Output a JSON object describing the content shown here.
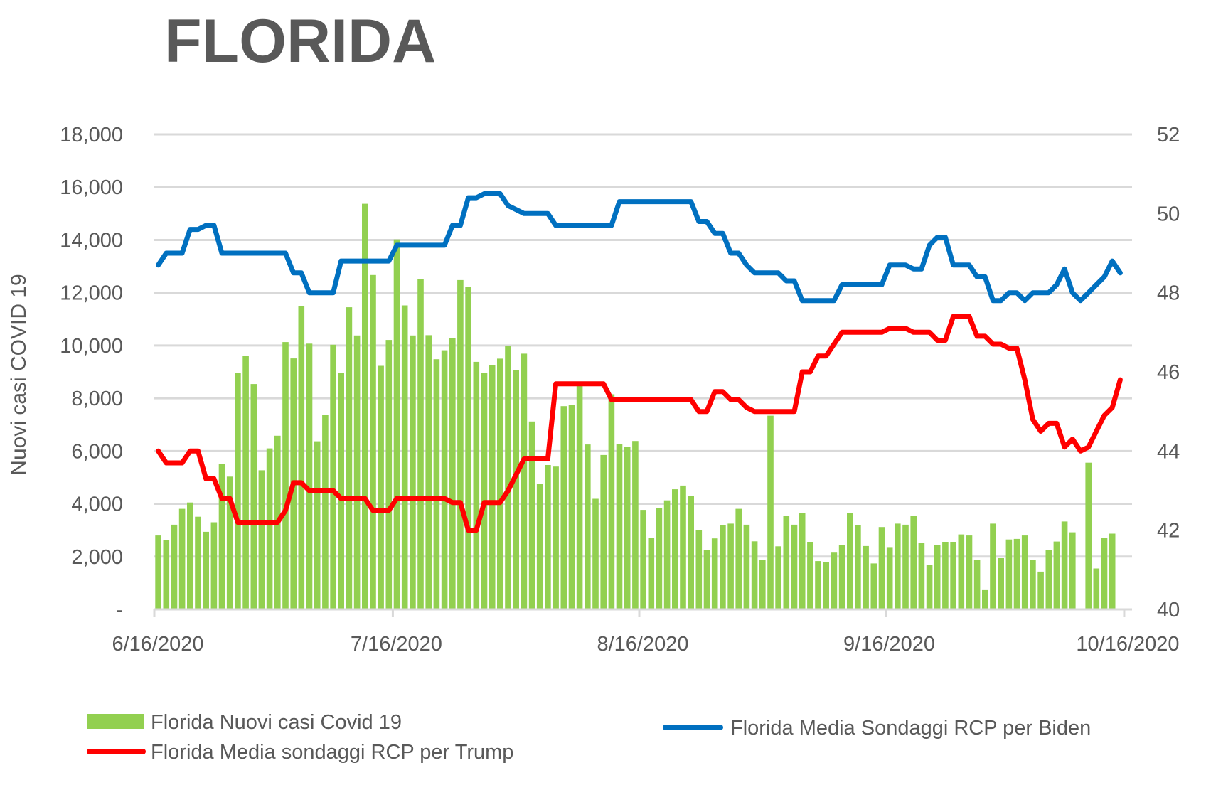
{
  "chart_data": {
    "type": "bar+line",
    "title": "FLORIDA",
    "xlabel": "",
    "ylabel": "Nuovi casi COVID 19",
    "y2label": "",
    "start_date": "6/16/2020",
    "x_tick_labels": [
      "6/16/2020",
      "7/16/2020",
      "8/16/2020",
      "9/16/2020",
      "10/16/2020"
    ],
    "x_tick_days": [
      0,
      30,
      61,
      92,
      122
    ],
    "ylim": [
      0,
      18000
    ],
    "y_ticks": [
      0,
      2000,
      4000,
      6000,
      8000,
      10000,
      12000,
      14000,
      16000,
      18000
    ],
    "y_tick_labels": [
      "-",
      "2,000",
      "4,000",
      "6,000",
      "8,000",
      "10,000",
      "12,000",
      "14,000",
      "16,000",
      "18,000"
    ],
    "y2lim": [
      40,
      52
    ],
    "y2_ticks": [
      40,
      42,
      44,
      46,
      48,
      50,
      52
    ],
    "y2_tick_labels": [
      "40",
      "42",
      "44",
      "46",
      "48",
      "50",
      "52"
    ],
    "grid": true,
    "legend_position": "bottom",
    "colors": {
      "cases": "#92D050",
      "biden": "#0070C0",
      "trump": "#FF0000",
      "grid": "#D9D9D9",
      "text": "#595959"
    },
    "series": [
      {
        "name": "Florida Nuovi casi Covid 19",
        "type": "bar",
        "axis": "left",
        "values": [
          2800,
          2620,
          3210,
          3810,
          4050,
          3510,
          2940,
          3300,
          5510,
          5030,
          8960,
          9620,
          8540,
          5270,
          6100,
          6580,
          10130,
          9510,
          11480,
          10070,
          6370,
          7370,
          10030,
          8970,
          11450,
          10380,
          15370,
          12670,
          9230,
          10210,
          14020,
          11520,
          10380,
          12530,
          10390,
          9480,
          9820,
          10280,
          12480,
          12230,
          9380,
          8950,
          9270,
          9500,
          9980,
          9060,
          9690,
          7120,
          4760,
          5470,
          5410,
          7700,
          7740,
          8510,
          6250,
          4190,
          5850,
          8150,
          6270,
          6160,
          6380,
          3770,
          2700,
          3840,
          4130,
          4550,
          4690,
          4310,
          2990,
          2240,
          2690,
          3200,
          3250,
          3810,
          3210,
          2580,
          1880,
          7340,
          2390,
          3550,
          3210,
          3640,
          2560,
          1830,
          1800,
          2150,
          2440,
          3640,
          3180,
          2400,
          1740,
          3120,
          2360,
          3250,
          3210,
          3550,
          2520,
          1690,
          2440,
          2560,
          2560,
          2840,
          2800,
          1870,
          730,
          3250,
          1940,
          2650,
          2670,
          2800,
          1870,
          1430,
          2240,
          2570,
          3330,
          2920,
          0,
          5560,
          1550,
          2710,
          2870
        ]
      },
      {
        "name": "Florida Media Sondaggi RCP per Biden",
        "type": "line",
        "axis": "right",
        "values": [
          48.7,
          49.0,
          49.0,
          49.0,
          49.6,
          49.6,
          49.7,
          49.7,
          49.0,
          49.0,
          49.0,
          49.0,
          49.0,
          49.0,
          49.0,
          49.0,
          49.0,
          48.5,
          48.5,
          48.0,
          48.0,
          48.0,
          48.0,
          48.8,
          48.8,
          48.8,
          48.8,
          48.8,
          48.8,
          48.8,
          49.2,
          49.2,
          49.2,
          49.2,
          49.2,
          49.2,
          49.2,
          49.7,
          49.7,
          50.4,
          50.4,
          50.5,
          50.5,
          50.5,
          50.2,
          50.1,
          50.0,
          50.0,
          50.0,
          50.0,
          49.7,
          49.7,
          49.7,
          49.7,
          49.7,
          49.7,
          49.7,
          49.7,
          50.3,
          50.3,
          50.3,
          50.3,
          50.3,
          50.3,
          50.3,
          50.3,
          50.3,
          50.3,
          49.8,
          49.8,
          49.5,
          49.5,
          49.0,
          49.0,
          48.7,
          48.5,
          48.5,
          48.5,
          48.5,
          48.3,
          48.3,
          47.8,
          47.8,
          47.8,
          47.8,
          47.8,
          48.2,
          48.2,
          48.2,
          48.2,
          48.2,
          48.2,
          48.7,
          48.7,
          48.7,
          48.6,
          48.6,
          49.2,
          49.4,
          49.4,
          48.7,
          48.7,
          48.7,
          48.4,
          48.4,
          47.8,
          47.8,
          48.0,
          48.0,
          47.8,
          48.0,
          48.0,
          48.0,
          48.2,
          48.6,
          48.0,
          47.8,
          48.0,
          48.2,
          48.4,
          48.8,
          48.5
        ]
      },
      {
        "name": "Florida Media sondaggi RCP per Trump",
        "type": "line",
        "axis": "right",
        "values": [
          44.0,
          43.7,
          43.7,
          43.7,
          44.0,
          44.0,
          43.3,
          43.3,
          42.8,
          42.8,
          42.2,
          42.2,
          42.2,
          42.2,
          42.2,
          42.2,
          42.5,
          43.2,
          43.2,
          43.0,
          43.0,
          43.0,
          43.0,
          42.8,
          42.8,
          42.8,
          42.8,
          42.5,
          42.5,
          42.5,
          42.8,
          42.8,
          42.8,
          42.8,
          42.8,
          42.8,
          42.8,
          42.7,
          42.7,
          42.0,
          42.0,
          42.7,
          42.7,
          42.7,
          43.0,
          43.4,
          43.8,
          43.8,
          43.8,
          43.8,
          45.7,
          45.7,
          45.7,
          45.7,
          45.7,
          45.7,
          45.7,
          45.3,
          45.3,
          45.3,
          45.3,
          45.3,
          45.3,
          45.3,
          45.3,
          45.3,
          45.3,
          45.3,
          45.0,
          45.0,
          45.5,
          45.5,
          45.3,
          45.3,
          45.1,
          45.0,
          45.0,
          45.0,
          45.0,
          45.0,
          45.0,
          46.0,
          46.0,
          46.4,
          46.4,
          46.7,
          47.0,
          47.0,
          47.0,
          47.0,
          47.0,
          47.0,
          47.1,
          47.1,
          47.1,
          47.0,
          47.0,
          47.0,
          46.8,
          46.8,
          47.4,
          47.4,
          47.4,
          46.9,
          46.9,
          46.7,
          46.7,
          46.6,
          46.6,
          45.8,
          44.8,
          44.5,
          44.7,
          44.7,
          44.1,
          44.3,
          44.0,
          44.1,
          44.5,
          44.9,
          45.1,
          45.8
        ]
      }
    ]
  }
}
